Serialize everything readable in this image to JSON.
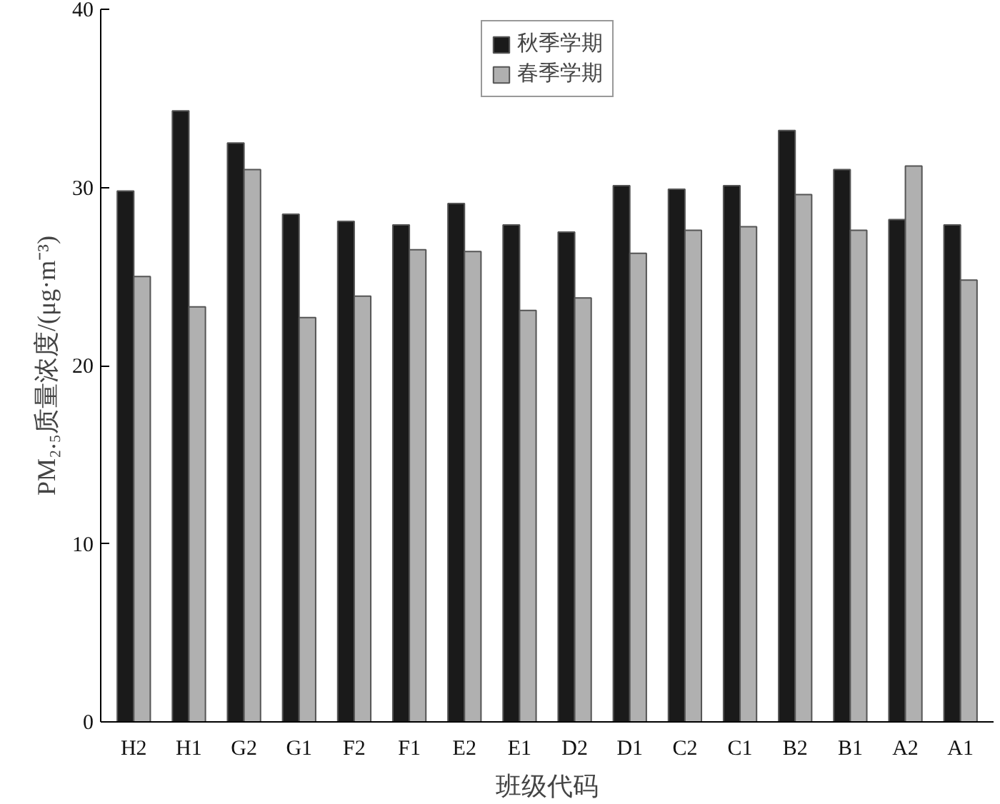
{
  "chart_data": {
    "type": "bar",
    "xlabel": "班级代码",
    "ylabel": "PM₂.₅质量浓度/(μg·m⁻³)",
    "categories": [
      "H2",
      "H1",
      "G2",
      "G1",
      "F2",
      "F1",
      "E2",
      "E1",
      "D2",
      "D1",
      "C2",
      "C1",
      "B2",
      "B1",
      "A2",
      "A1"
    ],
    "series": [
      {
        "name": "秋季学期",
        "color": "#1a1a1a",
        "values": [
          29.8,
          34.3,
          32.5,
          28.5,
          28.1,
          27.9,
          29.1,
          27.9,
          27.5,
          30.1,
          29.9,
          30.1,
          33.2,
          31.0,
          28.2,
          27.9
        ]
      },
      {
        "name": "春季学期",
        "color": "#b0b0b0",
        "values": [
          25.0,
          23.3,
          31.0,
          22.7,
          23.9,
          26.5,
          26.4,
          23.1,
          23.8,
          26.3,
          27.6,
          27.8,
          29.6,
          27.6,
          31.2,
          24.8
        ]
      }
    ],
    "ylim": [
      0,
      40
    ],
    "yticks": [
      0,
      10,
      20,
      30,
      40
    ],
    "grid": false,
    "legend": "top"
  }
}
